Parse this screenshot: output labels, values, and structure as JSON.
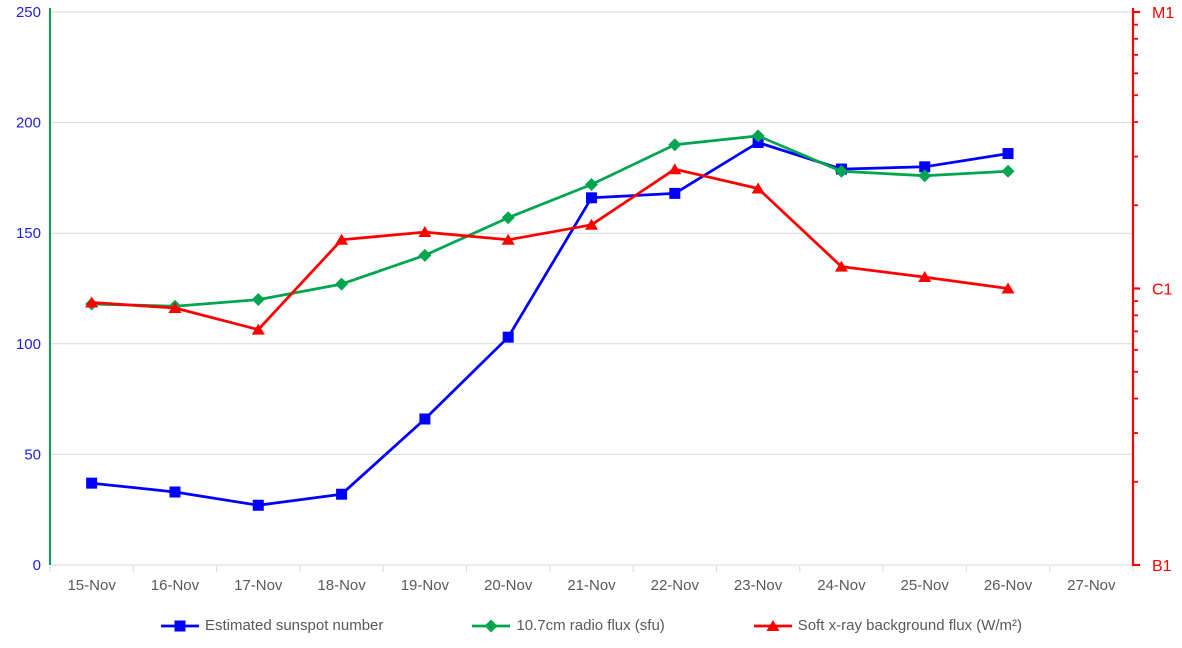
{
  "chart_data": {
    "type": "line",
    "title": "",
    "categories": [
      "15-Nov",
      "16-Nov",
      "17-Nov",
      "18-Nov",
      "19-Nov",
      "20-Nov",
      "21-Nov",
      "22-Nov",
      "23-Nov",
      "24-Nov",
      "25-Nov",
      "26-Nov",
      "27-Nov"
    ],
    "left_axis": {
      "min": 0,
      "max": 250,
      "ticks": [
        0,
        50,
        100,
        150,
        200,
        250
      ],
      "label_color": "#2222dd",
      "line_color": "#00a550"
    },
    "right_axis": {
      "min": 1e-07,
      "max": 1e-05,
      "color": "#ff0000",
      "labels": [
        {
          "text": "B1",
          "value": 1e-07
        },
        {
          "text": "C1",
          "value": 1e-06
        },
        {
          "text": "M1",
          "value": 1e-05
        }
      ]
    },
    "x_axis": {
      "label_color": "#595959",
      "tick_color": "#d9d9d9"
    },
    "grid": {
      "show": true,
      "color": "#d9d9d9"
    },
    "legend_position": "bottom",
    "legend_text_color": "#595959",
    "series": [
      {
        "name": "Estimated sunspot number",
        "color": "#0000ff",
        "marker": "square",
        "axis": "left",
        "values": [
          37,
          33,
          27,
          32,
          66,
          103,
          166,
          168,
          191,
          179,
          180,
          186
        ]
      },
      {
        "name": "10.7cm radio flux (sfu)",
        "color": "#00a550",
        "marker": "diamond",
        "axis": "left",
        "values": [
          118,
          117,
          120,
          127,
          140,
          157,
          172,
          190,
          194,
          178,
          176,
          178
        ]
      },
      {
        "name": "Soft x-ray background flux (W/m²)",
        "color": "#ff0000",
        "marker": "triangle",
        "axis": "right",
        "values": [
          8.9e-07,
          8.5e-07,
          7.1e-07,
          1.5e-06,
          1.6e-06,
          1.5e-06,
          1.7e-06,
          2.7e-06,
          2.3e-06,
          1.2e-06,
          1.1e-06,
          1e-06
        ]
      }
    ]
  }
}
